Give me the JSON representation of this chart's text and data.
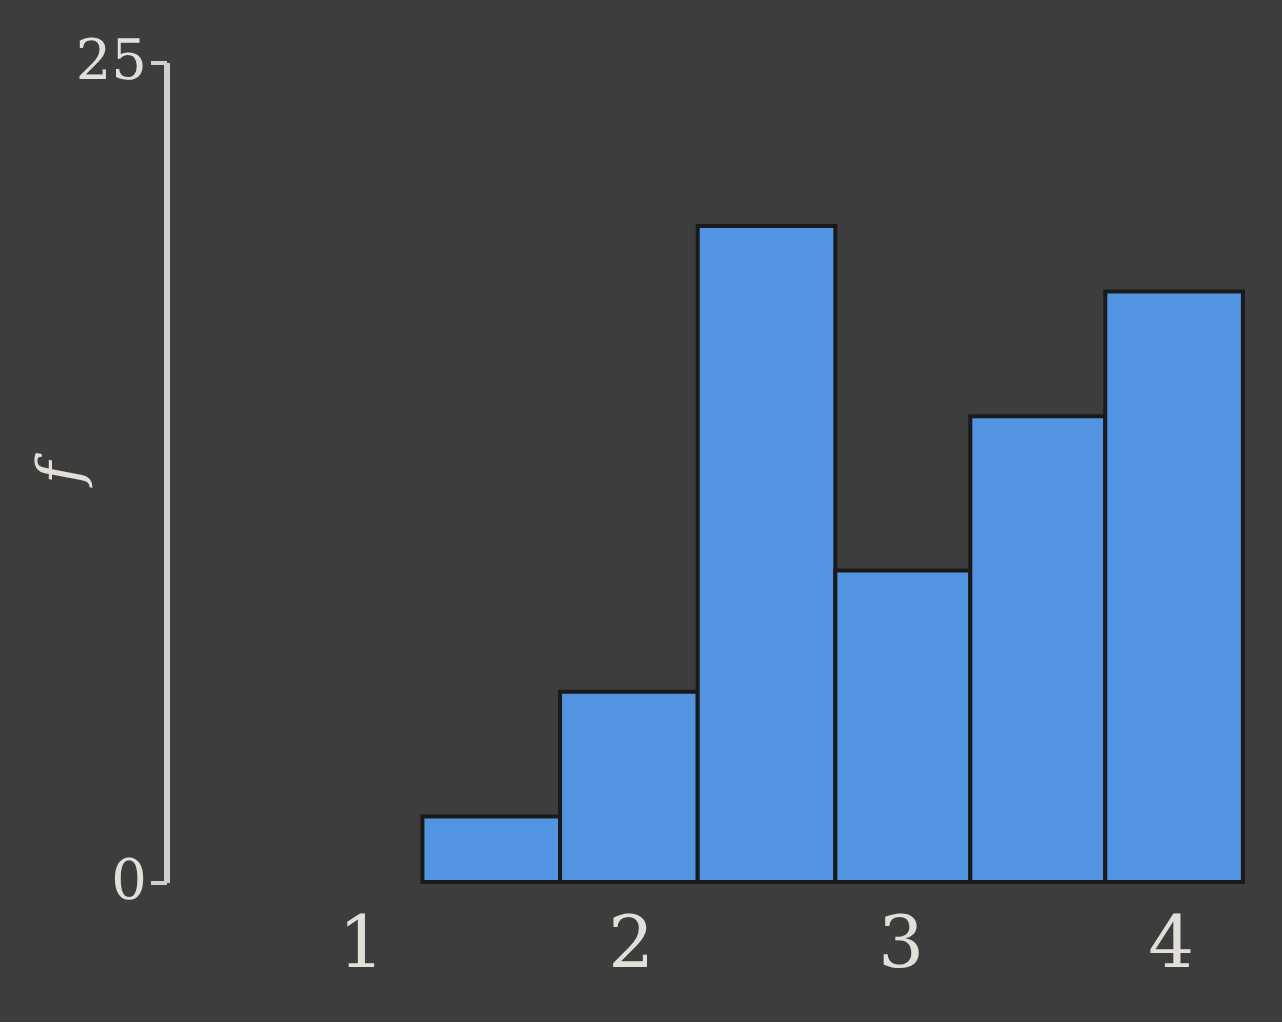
{
  "chart_data": {
    "type": "histogram",
    "ylabel": "f",
    "bins": [
      1.23,
      1.74,
      2.25,
      2.76,
      3.26,
      3.76,
      4.27
    ],
    "values": [
      2,
      5.8,
      20,
      9.5,
      14.2,
      18
    ],
    "color": "#5294e2",
    "xlim": [
      0.28,
      4.4
    ],
    "xticks": [
      1,
      2,
      3,
      4
    ],
    "ylim": [
      0,
      25
    ],
    "yticks": [
      0,
      25
    ],
    "grid": false
  }
}
